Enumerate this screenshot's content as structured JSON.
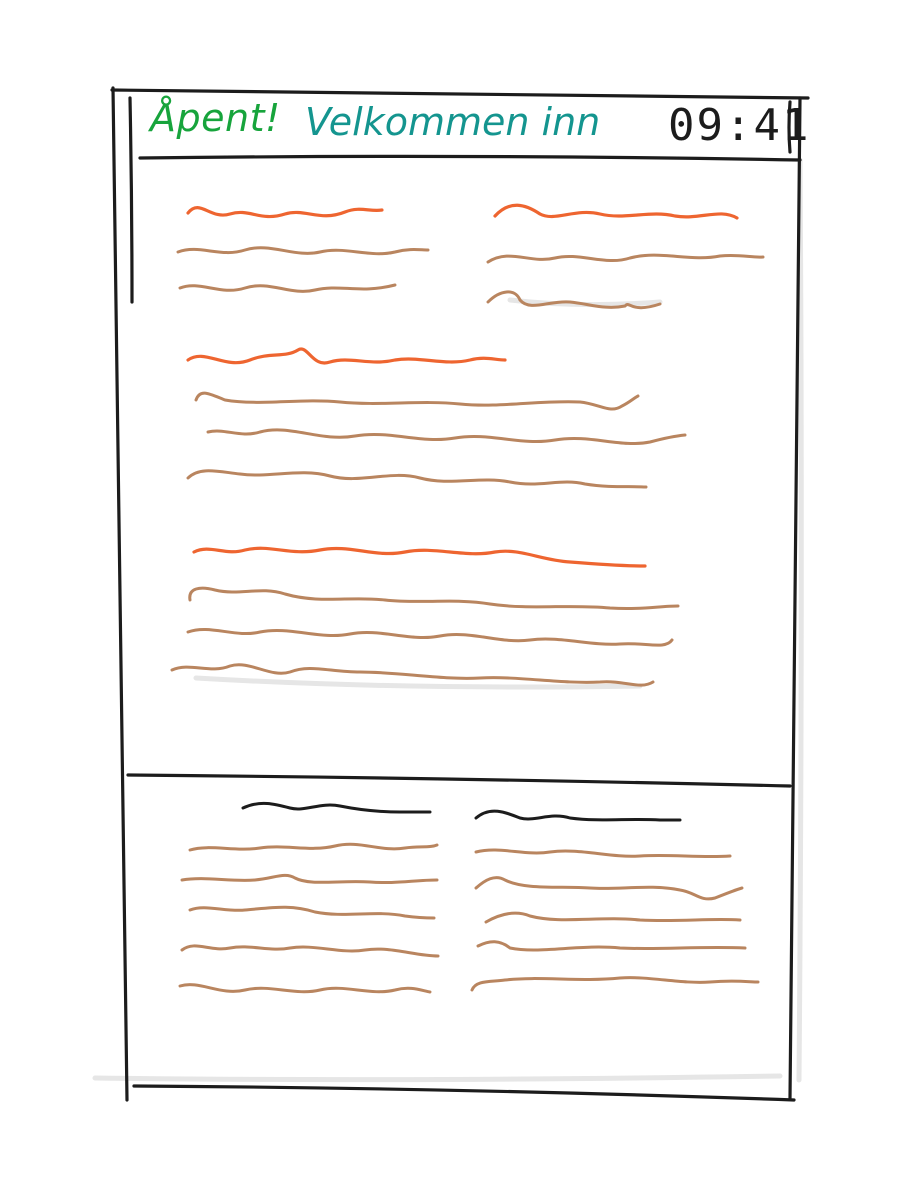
{
  "header": {
    "open_label": "Åpent!",
    "welcome_label": "Velkommen inn",
    "time": "09:41"
  },
  "colors": {
    "ink": "#1c1c1c",
    "green": "#17a43c",
    "teal": "#14958f",
    "heading_squiggle": "#ee6530",
    "text_squiggle": "#b9855f",
    "footer_heading_squiggle": "#1c1c1c"
  },
  "main": {
    "sections": [
      {
        "id": "top-left",
        "heading": "squiggle",
        "lines": 2
      },
      {
        "id": "top-right",
        "heading": "squiggle",
        "lines": 2
      },
      {
        "id": "middle",
        "heading": "squiggle",
        "lines": 3
      },
      {
        "id": "lower",
        "heading": "squiggle",
        "lines": 3
      }
    ]
  },
  "footer": {
    "columns": [
      {
        "id": "footer-left",
        "heading": "squiggle",
        "lines": 5
      },
      {
        "id": "footer-right",
        "heading": "squiggle",
        "lines": 5
      }
    ]
  }
}
